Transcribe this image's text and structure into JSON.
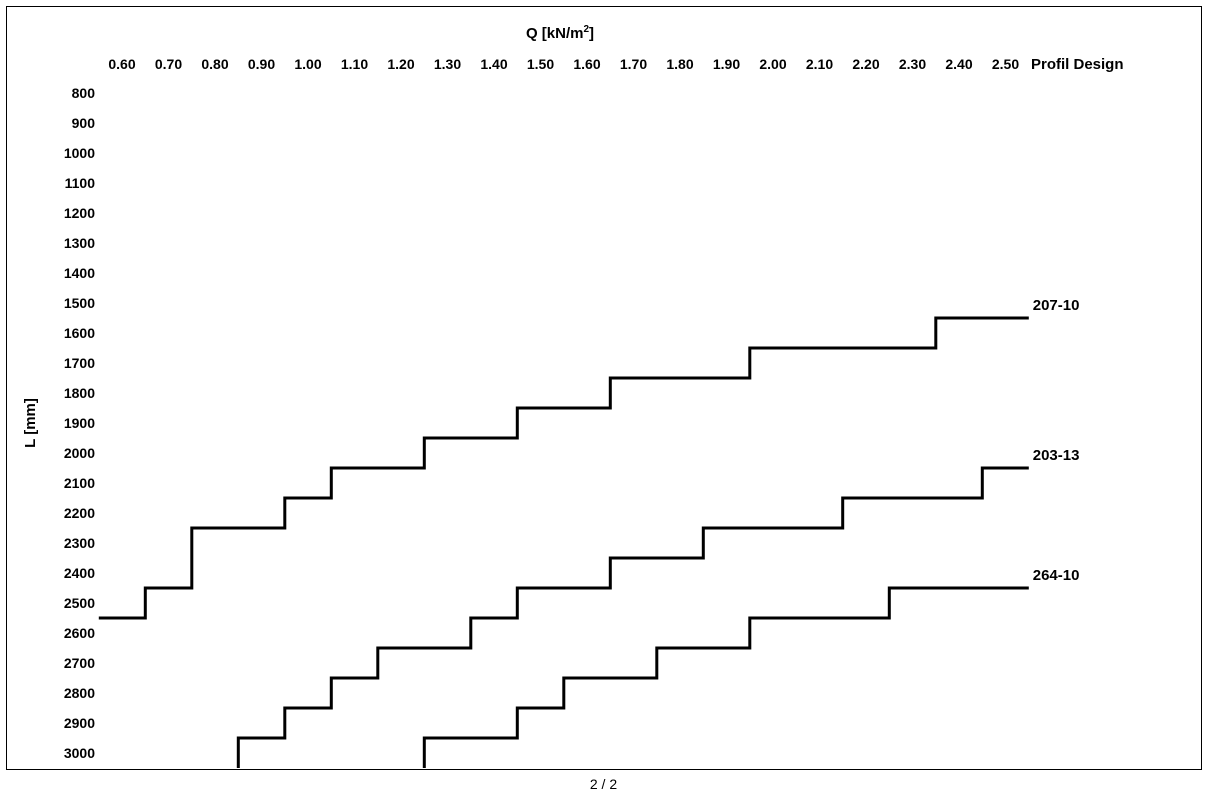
{
  "page": {
    "number": "2 / 2"
  },
  "chart_data": {
    "type": "line",
    "title": "Q [kN/m2]",
    "title_parts": {
      "main": "Q [kN/m",
      "sup": "2",
      "end": "]"
    },
    "xlabel": "Q [kN/m2]",
    "ylabel": "L [mm]",
    "legend_header": "Profil Design",
    "x_ticks": [
      0.6,
      0.7,
      0.8,
      0.9,
      1.0,
      1.1,
      1.2,
      1.3,
      1.4,
      1.5,
      1.6,
      1.7,
      1.8,
      1.9,
      2.0,
      2.1,
      2.2,
      2.3,
      2.4,
      2.5
    ],
    "x_tick_labels": [
      "0.60",
      "0.70",
      "0.80",
      "0.90",
      "1.00",
      "1.10",
      "1.20",
      "1.30",
      "1.40",
      "1.50",
      "1.60",
      "1.70",
      "1.80",
      "1.90",
      "2.00",
      "2.10",
      "2.20",
      "2.30",
      "2.40",
      "2.50"
    ],
    "y_ticks": [
      800,
      900,
      1000,
      1100,
      1200,
      1300,
      1400,
      1500,
      1600,
      1700,
      1800,
      1900,
      2000,
      2100,
      2200,
      2300,
      2400,
      2500,
      2600,
      2700,
      2800,
      2900,
      3000
    ],
    "y_tick_labels": [
      "800",
      "900",
      "1000",
      "1100",
      "1200",
      "1300",
      "1400",
      "1500",
      "1600",
      "1700",
      "1800",
      "1900",
      "2000",
      "2100",
      "2200",
      "2300",
      "2400",
      "2500",
      "2600",
      "2700",
      "2800",
      "2900",
      "3000"
    ],
    "xlim": [
      0.55,
      2.55
    ],
    "ylim": [
      800,
      3000
    ],
    "y_inverted": true,
    "x_axis_position": "top",
    "grid": false,
    "step_style": "horizontal-then-vertical steps",
    "series": [
      {
        "name": "207-10",
        "points": [
          [
            0.55,
            2550
          ],
          [
            0.65,
            2550
          ],
          [
            0.65,
            2450
          ],
          [
            0.75,
            2450
          ],
          [
            0.75,
            2250
          ],
          [
            0.95,
            2250
          ],
          [
            0.95,
            2150
          ],
          [
            1.05,
            2150
          ],
          [
            1.05,
            2050
          ],
          [
            1.25,
            2050
          ],
          [
            1.25,
            1950
          ],
          [
            1.45,
            1950
          ],
          [
            1.45,
            1850
          ],
          [
            1.65,
            1850
          ],
          [
            1.65,
            1750
          ],
          [
            1.95,
            1750
          ],
          [
            1.95,
            1650
          ],
          [
            2.35,
            1650
          ],
          [
            2.35,
            1550
          ],
          [
            2.55,
            1550
          ]
        ]
      },
      {
        "name": "203-13",
        "points": [
          [
            0.85,
            3050
          ],
          [
            0.85,
            2950
          ],
          [
            0.95,
            2950
          ],
          [
            0.95,
            2850
          ],
          [
            1.05,
            2850
          ],
          [
            1.05,
            2750
          ],
          [
            1.15,
            2750
          ],
          [
            1.15,
            2650
          ],
          [
            1.35,
            2650
          ],
          [
            1.35,
            2550
          ],
          [
            1.45,
            2550
          ],
          [
            1.45,
            2450
          ],
          [
            1.65,
            2450
          ],
          [
            1.65,
            2350
          ],
          [
            1.85,
            2350
          ],
          [
            1.85,
            2250
          ],
          [
            2.15,
            2250
          ],
          [
            2.15,
            2150
          ],
          [
            2.45,
            2150
          ],
          [
            2.45,
            2050
          ],
          [
            2.55,
            2050
          ]
        ]
      },
      {
        "name": "264-10",
        "points": [
          [
            1.25,
            3050
          ],
          [
            1.25,
            2950
          ],
          [
            1.45,
            2950
          ],
          [
            1.45,
            2850
          ],
          [
            1.55,
            2850
          ],
          [
            1.55,
            2750
          ],
          [
            1.75,
            2750
          ],
          [
            1.75,
            2650
          ],
          [
            1.95,
            2650
          ],
          [
            1.95,
            2550
          ],
          [
            2.25,
            2550
          ],
          [
            2.25,
            2450
          ],
          [
            2.55,
            2450
          ]
        ]
      }
    ]
  }
}
